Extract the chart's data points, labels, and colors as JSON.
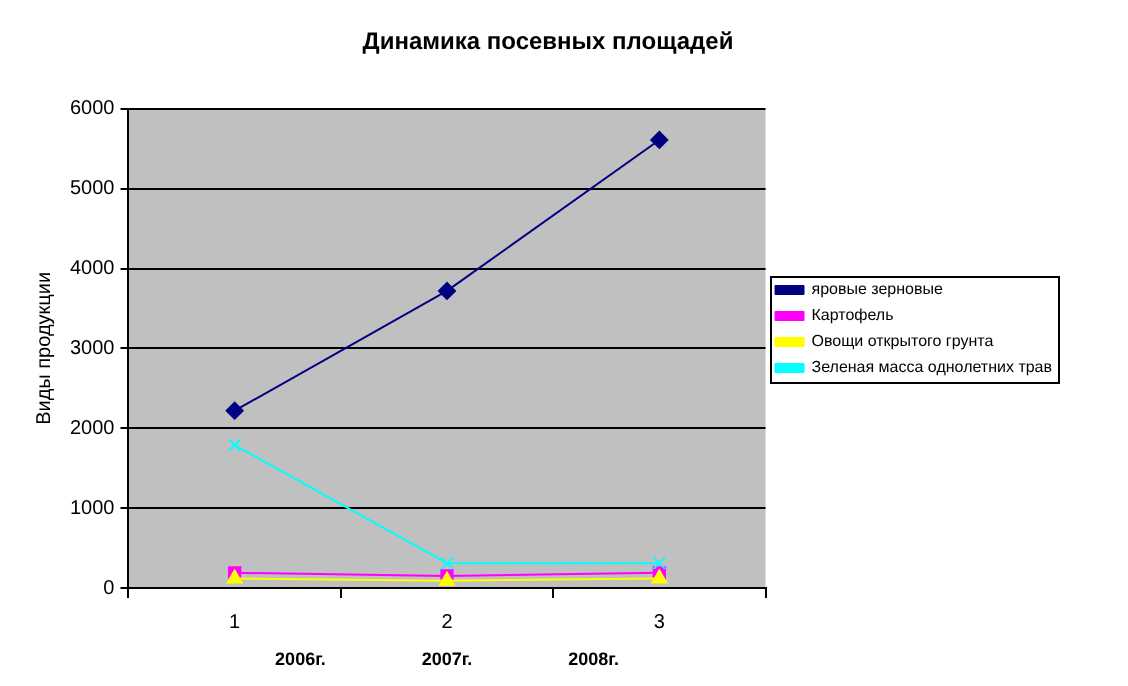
{
  "chart_data": {
    "type": "line",
    "title": "Динамика посевных площадей",
    "ylabel": "Виды продукции",
    "categories": [
      "1",
      "2",
      "3"
    ],
    "series": [
      {
        "name": "яровые зерновые",
        "color": "#000080",
        "values": [
          2220,
          3720,
          5610
        ],
        "marker": "diamond"
      },
      {
        "name": "Картофель",
        "color": "#ff00ff",
        "values": [
          190,
          150,
          190
        ],
        "marker": "square"
      },
      {
        "name": "Овощи открытого грунта",
        "color": "#ffff00",
        "values": [
          120,
          90,
          120
        ],
        "marker": "triangle"
      },
      {
        "name": "Зеленая масса однолетних трав",
        "color": "#00ffff",
        "values": [
          1790,
          310,
          310
        ],
        "marker": "cross"
      }
    ],
    "ylim": [
      0,
      6000
    ],
    "yticks": [
      0,
      1000,
      2000,
      3000,
      4000,
      5000,
      6000
    ],
    "grid": "y",
    "legend": "right",
    "annotations": [
      "2006г.",
      "2007г.",
      "2008г."
    ]
  }
}
